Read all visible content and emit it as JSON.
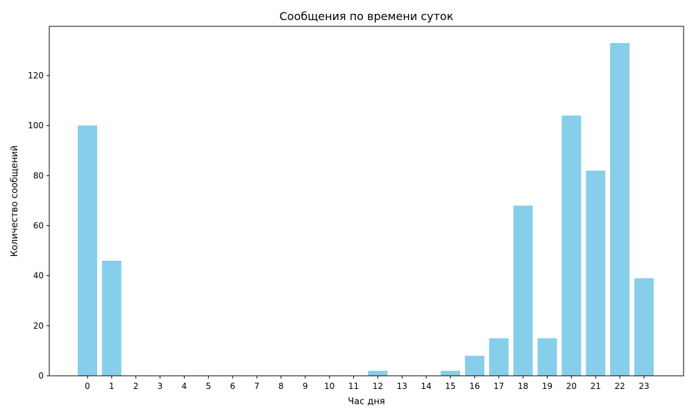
{
  "chart_data": {
    "type": "bar",
    "title": "Сообщения по времени суток",
    "xlabel": "Час дня",
    "ylabel": "Количество сообщений",
    "categories": [
      "0",
      "1",
      "2",
      "3",
      "4",
      "5",
      "6",
      "7",
      "8",
      "9",
      "10",
      "11",
      "12",
      "13",
      "14",
      "15",
      "16",
      "17",
      "18",
      "19",
      "20",
      "21",
      "22",
      "23"
    ],
    "values": [
      100,
      46,
      0,
      0,
      0,
      0,
      0,
      0,
      0,
      0,
      0,
      0,
      2,
      0,
      0,
      2,
      8,
      15,
      68,
      15,
      104,
      82,
      133,
      39
    ],
    "yticks": [
      0,
      20,
      40,
      60,
      80,
      100,
      120
    ],
    "ylim": [
      0,
      139.65
    ],
    "bar_color": "#87ceeb",
    "grid": false,
    "legend": "none"
  }
}
